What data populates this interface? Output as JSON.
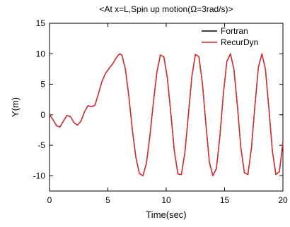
{
  "chart_data": {
    "type": "line",
    "title": "<At x=L,Spin up motion(Ω=3rad/s)>",
    "xlabel": "Time(sec)",
    "ylabel": "Y(m)",
    "xlim": [
      0,
      20
    ],
    "ylim": [
      -12.5,
      15
    ],
    "xticks": [
      0,
      5,
      10,
      15,
      20
    ],
    "yticks": [
      -10,
      -5,
      0,
      5,
      10,
      15
    ],
    "grid": false,
    "legend_position": "top-right",
    "colors": {
      "Fortran": "#000000",
      "RecurDyn": "#e8262b"
    },
    "series": [
      {
        "name": "Fortran",
        "x": [
          0,
          0.3,
          0.6,
          0.9,
          1.2,
          1.5,
          1.8,
          2.1,
          2.4,
          2.7,
          3.0,
          3.3,
          3.6,
          3.9,
          4.2,
          4.5,
          4.8,
          5.1,
          5.4,
          5.7,
          6.0,
          6.2,
          6.5,
          6.8,
          7.1,
          7.4,
          7.7,
          8.0,
          8.3,
          8.6,
          8.9,
          9.2,
          9.5,
          9.8,
          10.1,
          10.4,
          10.7,
          11.0,
          11.3,
          11.6,
          11.9,
          12.2,
          12.5,
          12.8,
          13.1,
          13.4,
          13.7,
          14.0,
          14.3,
          14.6,
          14.9,
          15.2,
          15.5,
          15.8,
          16.1,
          16.4,
          16.7,
          17.0,
          17.3,
          17.6,
          17.9,
          18.2,
          18.5,
          18.8,
          19.1,
          19.4,
          19.7,
          20.0
        ],
        "y": [
          0,
          -0.8,
          -1.8,
          -2.0,
          -1.0,
          -0.1,
          -0.3,
          -1.3,
          -1.7,
          -1.0,
          0.5,
          1.5,
          1.3,
          1.6,
          3.5,
          5.5,
          6.8,
          7.6,
          8.3,
          9.3,
          10.0,
          9.8,
          7.5,
          3.0,
          -2.5,
          -7.0,
          -9.6,
          -10.0,
          -8.0,
          -3.5,
          2.0,
          7.0,
          9.8,
          9.5,
          6.0,
          0.2,
          -6.0,
          -9.7,
          -9.8,
          -6.2,
          0.0,
          6.3,
          9.9,
          9.5,
          5.2,
          -1.5,
          -7.8,
          -10.0,
          -8.8,
          -3.5,
          3.5,
          8.8,
          10.0,
          7.5,
          1.5,
          -5.5,
          -9.5,
          -9.8,
          -5.5,
          1.5,
          7.8,
          10.0,
          7.5,
          1.0,
          -6.0,
          -9.8,
          -9.3,
          -4.5
        ]
      },
      {
        "name": "RecurDyn",
        "x": [
          0,
          0.3,
          0.6,
          0.9,
          1.2,
          1.5,
          1.8,
          2.1,
          2.4,
          2.7,
          3.0,
          3.3,
          3.6,
          3.9,
          4.2,
          4.5,
          4.8,
          5.1,
          5.4,
          5.7,
          6.0,
          6.2,
          6.5,
          6.8,
          7.1,
          7.4,
          7.7,
          8.0,
          8.3,
          8.6,
          8.9,
          9.2,
          9.5,
          9.8,
          10.1,
          10.4,
          10.7,
          11.0,
          11.3,
          11.6,
          11.9,
          12.2,
          12.5,
          12.8,
          13.1,
          13.4,
          13.7,
          14.0,
          14.3,
          14.6,
          14.9,
          15.2,
          15.5,
          15.8,
          16.1,
          16.4,
          16.7,
          17.0,
          17.3,
          17.6,
          17.9,
          18.2,
          18.5,
          18.8,
          19.1,
          19.4,
          19.7,
          20.0
        ],
        "y": [
          0,
          -0.8,
          -1.8,
          -2.0,
          -1.0,
          -0.1,
          -0.3,
          -1.3,
          -1.7,
          -1.0,
          0.5,
          1.5,
          1.3,
          1.6,
          3.5,
          5.5,
          6.8,
          7.6,
          8.3,
          9.3,
          10.0,
          9.8,
          7.5,
          3.0,
          -2.5,
          -7.0,
          -9.6,
          -10.0,
          -8.0,
          -3.5,
          2.0,
          7.0,
          9.8,
          9.5,
          6.0,
          0.2,
          -6.0,
          -9.7,
          -9.8,
          -6.2,
          0.0,
          6.3,
          9.9,
          9.5,
          5.2,
          -1.5,
          -7.8,
          -10.0,
          -8.8,
          -3.5,
          3.5,
          8.8,
          10.0,
          7.5,
          1.5,
          -5.5,
          -9.5,
          -9.8,
          -5.5,
          1.5,
          7.8,
          10.0,
          7.5,
          1.0,
          -6.0,
          -9.8,
          -9.3,
          -4.5
        ]
      }
    ]
  }
}
